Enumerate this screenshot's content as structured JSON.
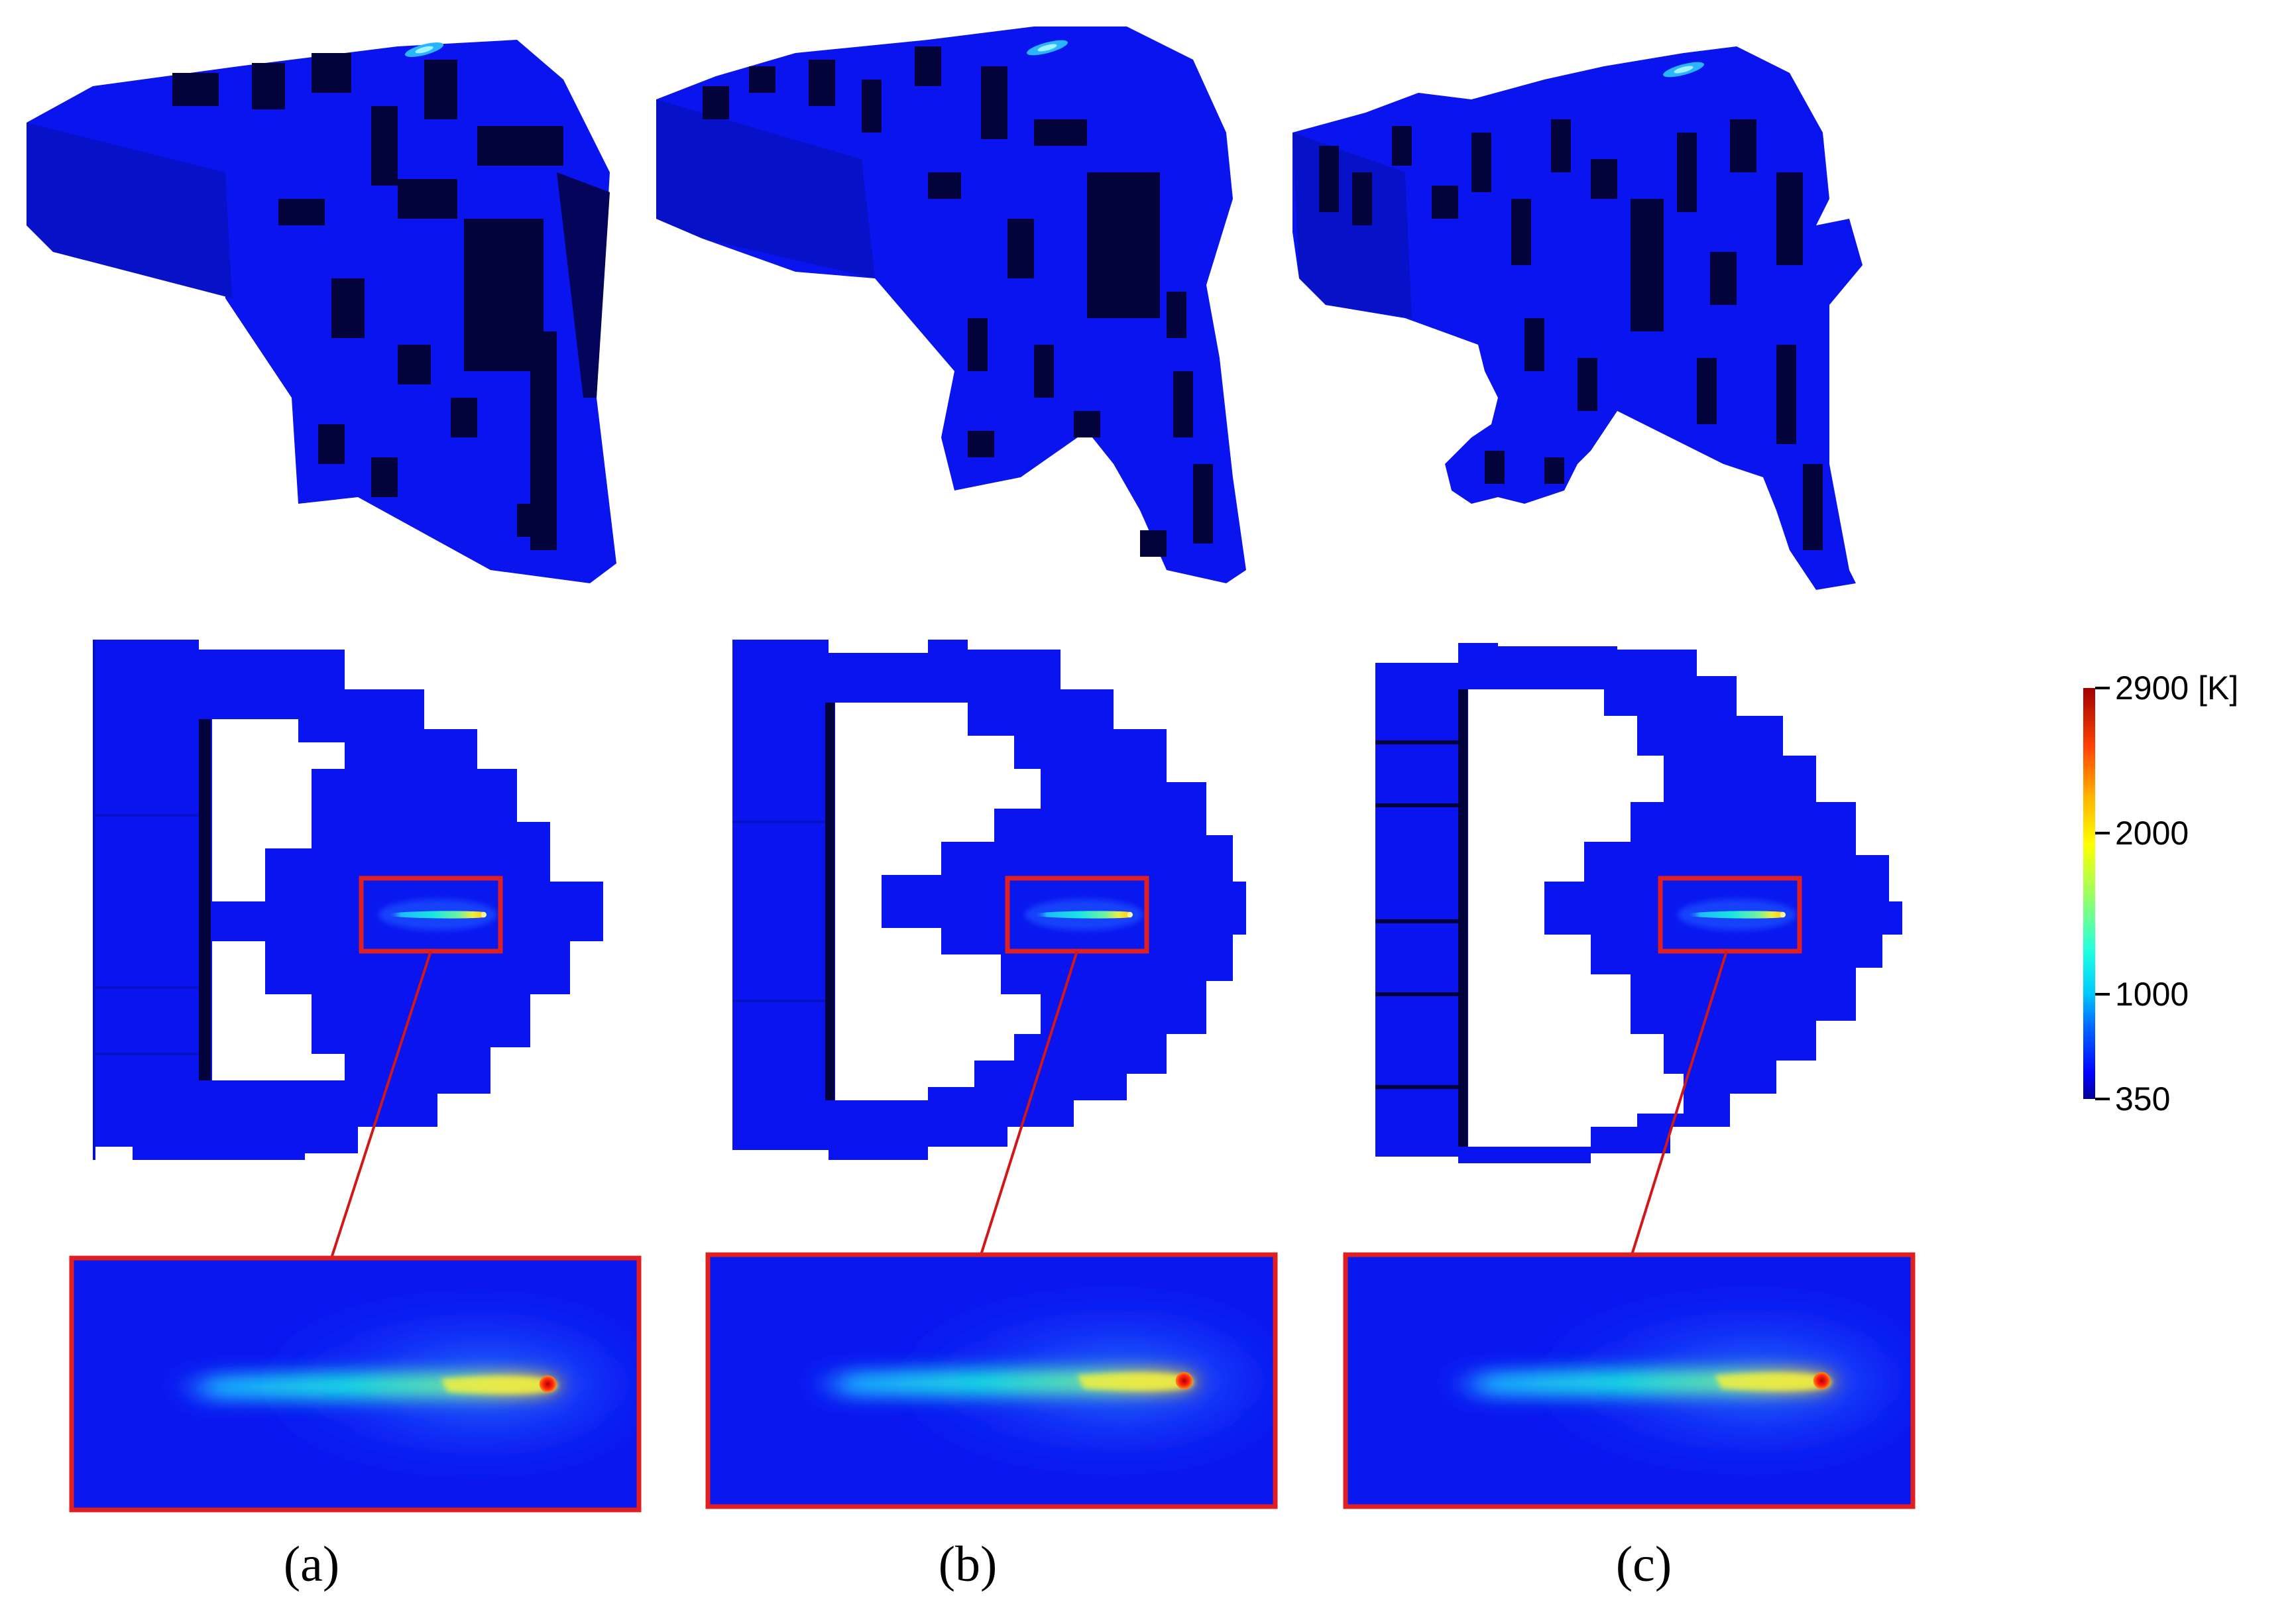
{
  "colors": {
    "voxel_face": "#0a14ee",
    "voxel_shadow": "#02033a",
    "zoom_frame": "#e02020",
    "leader_line": "#d01818",
    "background": "#ffffff"
  },
  "columns": [
    {
      "id": "a",
      "label": "(a)"
    },
    {
      "id": "b",
      "label": "(b)"
    },
    {
      "id": "c",
      "label": "(c)"
    }
  ],
  "colorbar": {
    "colormap": "jet",
    "min": 350,
    "max": 2900,
    "ticks": [
      {
        "value": 2900,
        "label": "2900 [K]"
      },
      {
        "value": 2000,
        "label": "2000"
      },
      {
        "value": 1000,
        "label": "1000"
      },
      {
        "value": 350,
        "label": "350"
      }
    ]
  }
}
